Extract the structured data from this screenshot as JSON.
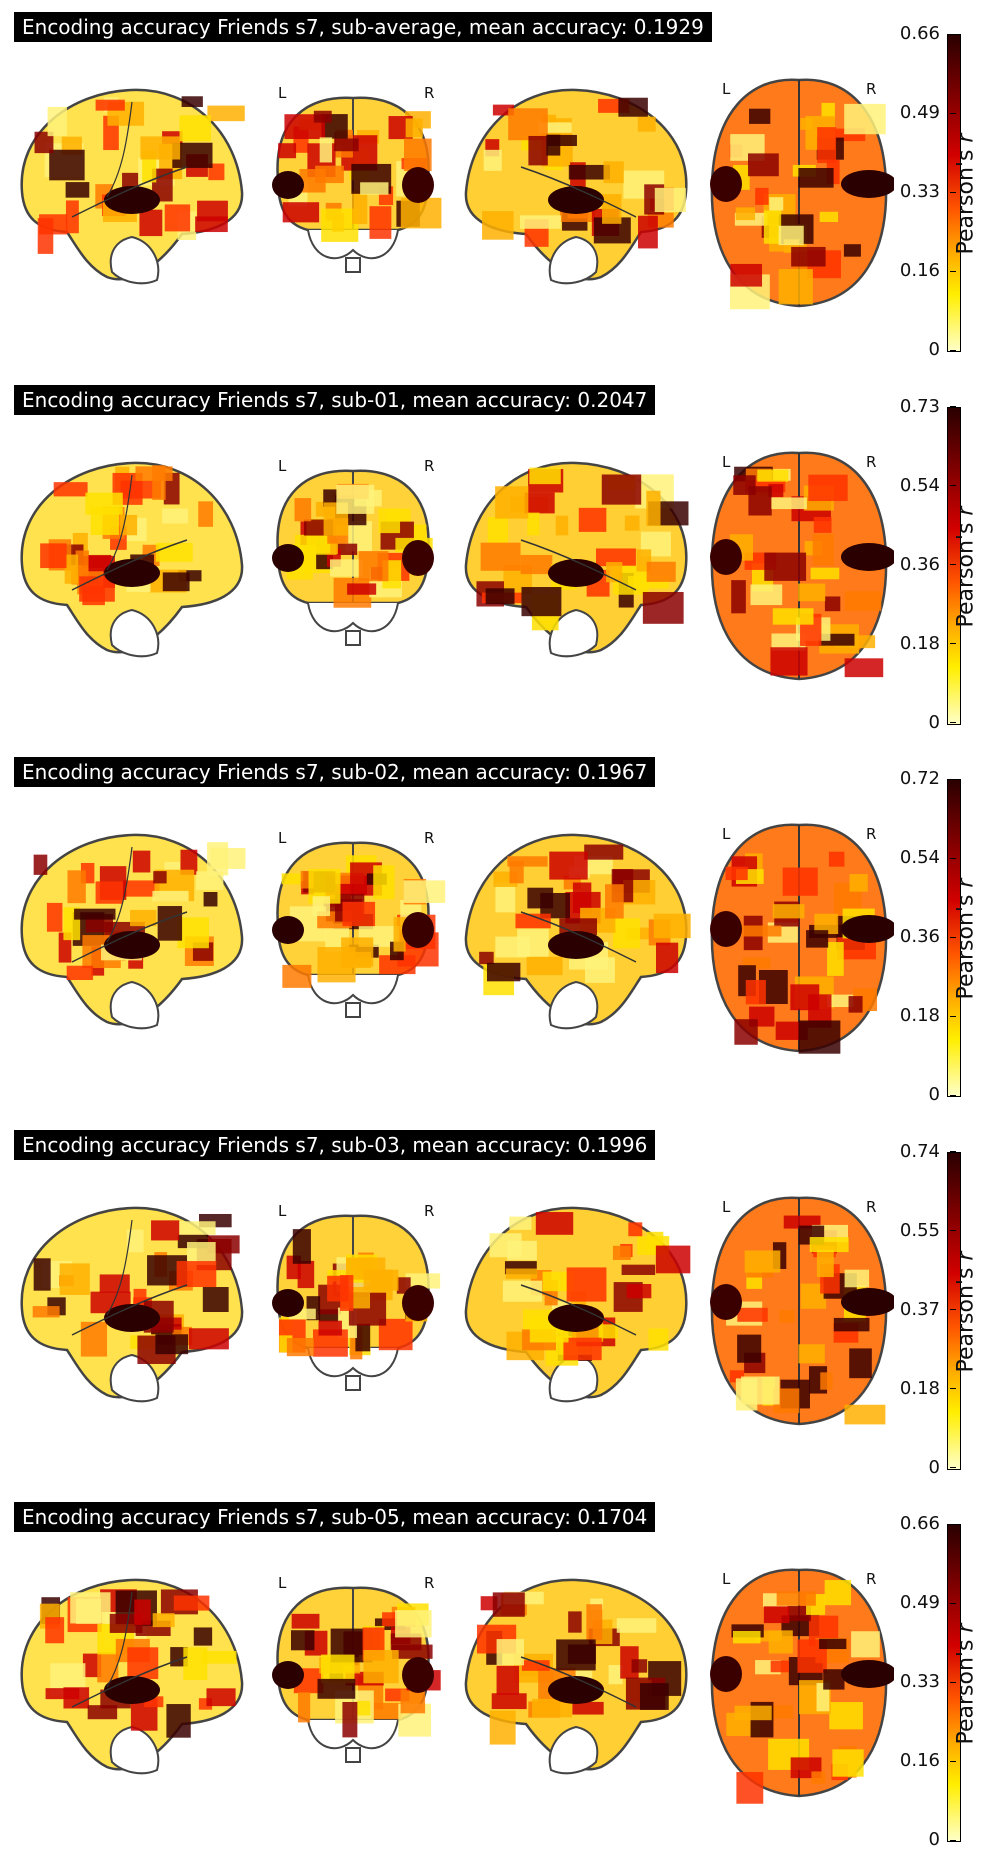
{
  "panels": [
    {
      "title": "Encoding accuracy Friends s7, sub-average, mean accuracy: 0.1929",
      "ticks": [
        "0.66",
        "0.49",
        "0.33",
        "0.16",
        "0"
      ]
    },
    {
      "title": "Encoding accuracy Friends s7, sub-01, mean accuracy: 0.2047",
      "ticks": [
        "0.73",
        "0.54",
        "0.36",
        "0.18",
        "0"
      ]
    },
    {
      "title": "Encoding accuracy Friends s7, sub-02, mean accuracy: 0.1967",
      "ticks": [
        "0.72",
        "0.54",
        "0.36",
        "0.18",
        "0"
      ]
    },
    {
      "title": "Encoding accuracy Friends s7, sub-03, mean accuracy: 0.1996",
      "ticks": [
        "0.74",
        "0.55",
        "0.37",
        "0.18",
        "0"
      ]
    },
    {
      "title": "Encoding accuracy Friends s7, sub-05, mean accuracy: 0.1704",
      "ticks": [
        "0.66",
        "0.49",
        "0.33",
        "0.16",
        "0"
      ]
    }
  ],
  "colorbar_label": "Pearson's",
  "colorbar_symbol": "r",
  "left_marker": "L",
  "right_marker": "R",
  "colormap": [
    "#2a0000",
    "#7a0000",
    "#d10000",
    "#ff5500",
    "#ffa500",
    "#ffee00",
    "#ffffc8"
  ]
}
